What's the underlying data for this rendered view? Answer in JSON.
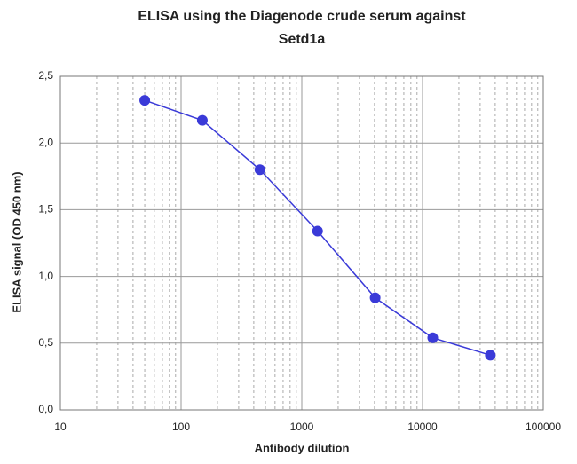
{
  "chart_data": {
    "type": "line",
    "title": "ELISA using the Diagenode crude serum against Setd1a",
    "x_label": "Antibody dilution",
    "y_label": "ELISA signal (OD 450 nm)",
    "x": [
      50,
      150,
      450,
      1350,
      4050,
      12150,
      36450
    ],
    "series": [
      {
        "color": "#3a3ad8",
        "values": [
          2.32,
          2.17,
          1.8,
          1.34,
          0.84,
          0.54,
          0.41
        ]
      }
    ],
    "xlim": [
      10,
      100000
    ],
    "xticks": [
      10,
      100,
      1000,
      10000,
      100000
    ],
    "xscale": "log",
    "ylim": [
      0,
      2.5
    ],
    "yticks": [
      {
        "value": 0,
        "label": "0,0"
      },
      {
        "value": 0.5,
        "label": "0,5"
      },
      {
        "value": 1,
        "label": "1,0"
      },
      {
        "value": 1.5,
        "label": "1,5"
      },
      {
        "value": 2,
        "label": "2,0"
      },
      {
        "value": 2.5,
        "label": "2,5"
      }
    ],
    "grid": true
  }
}
